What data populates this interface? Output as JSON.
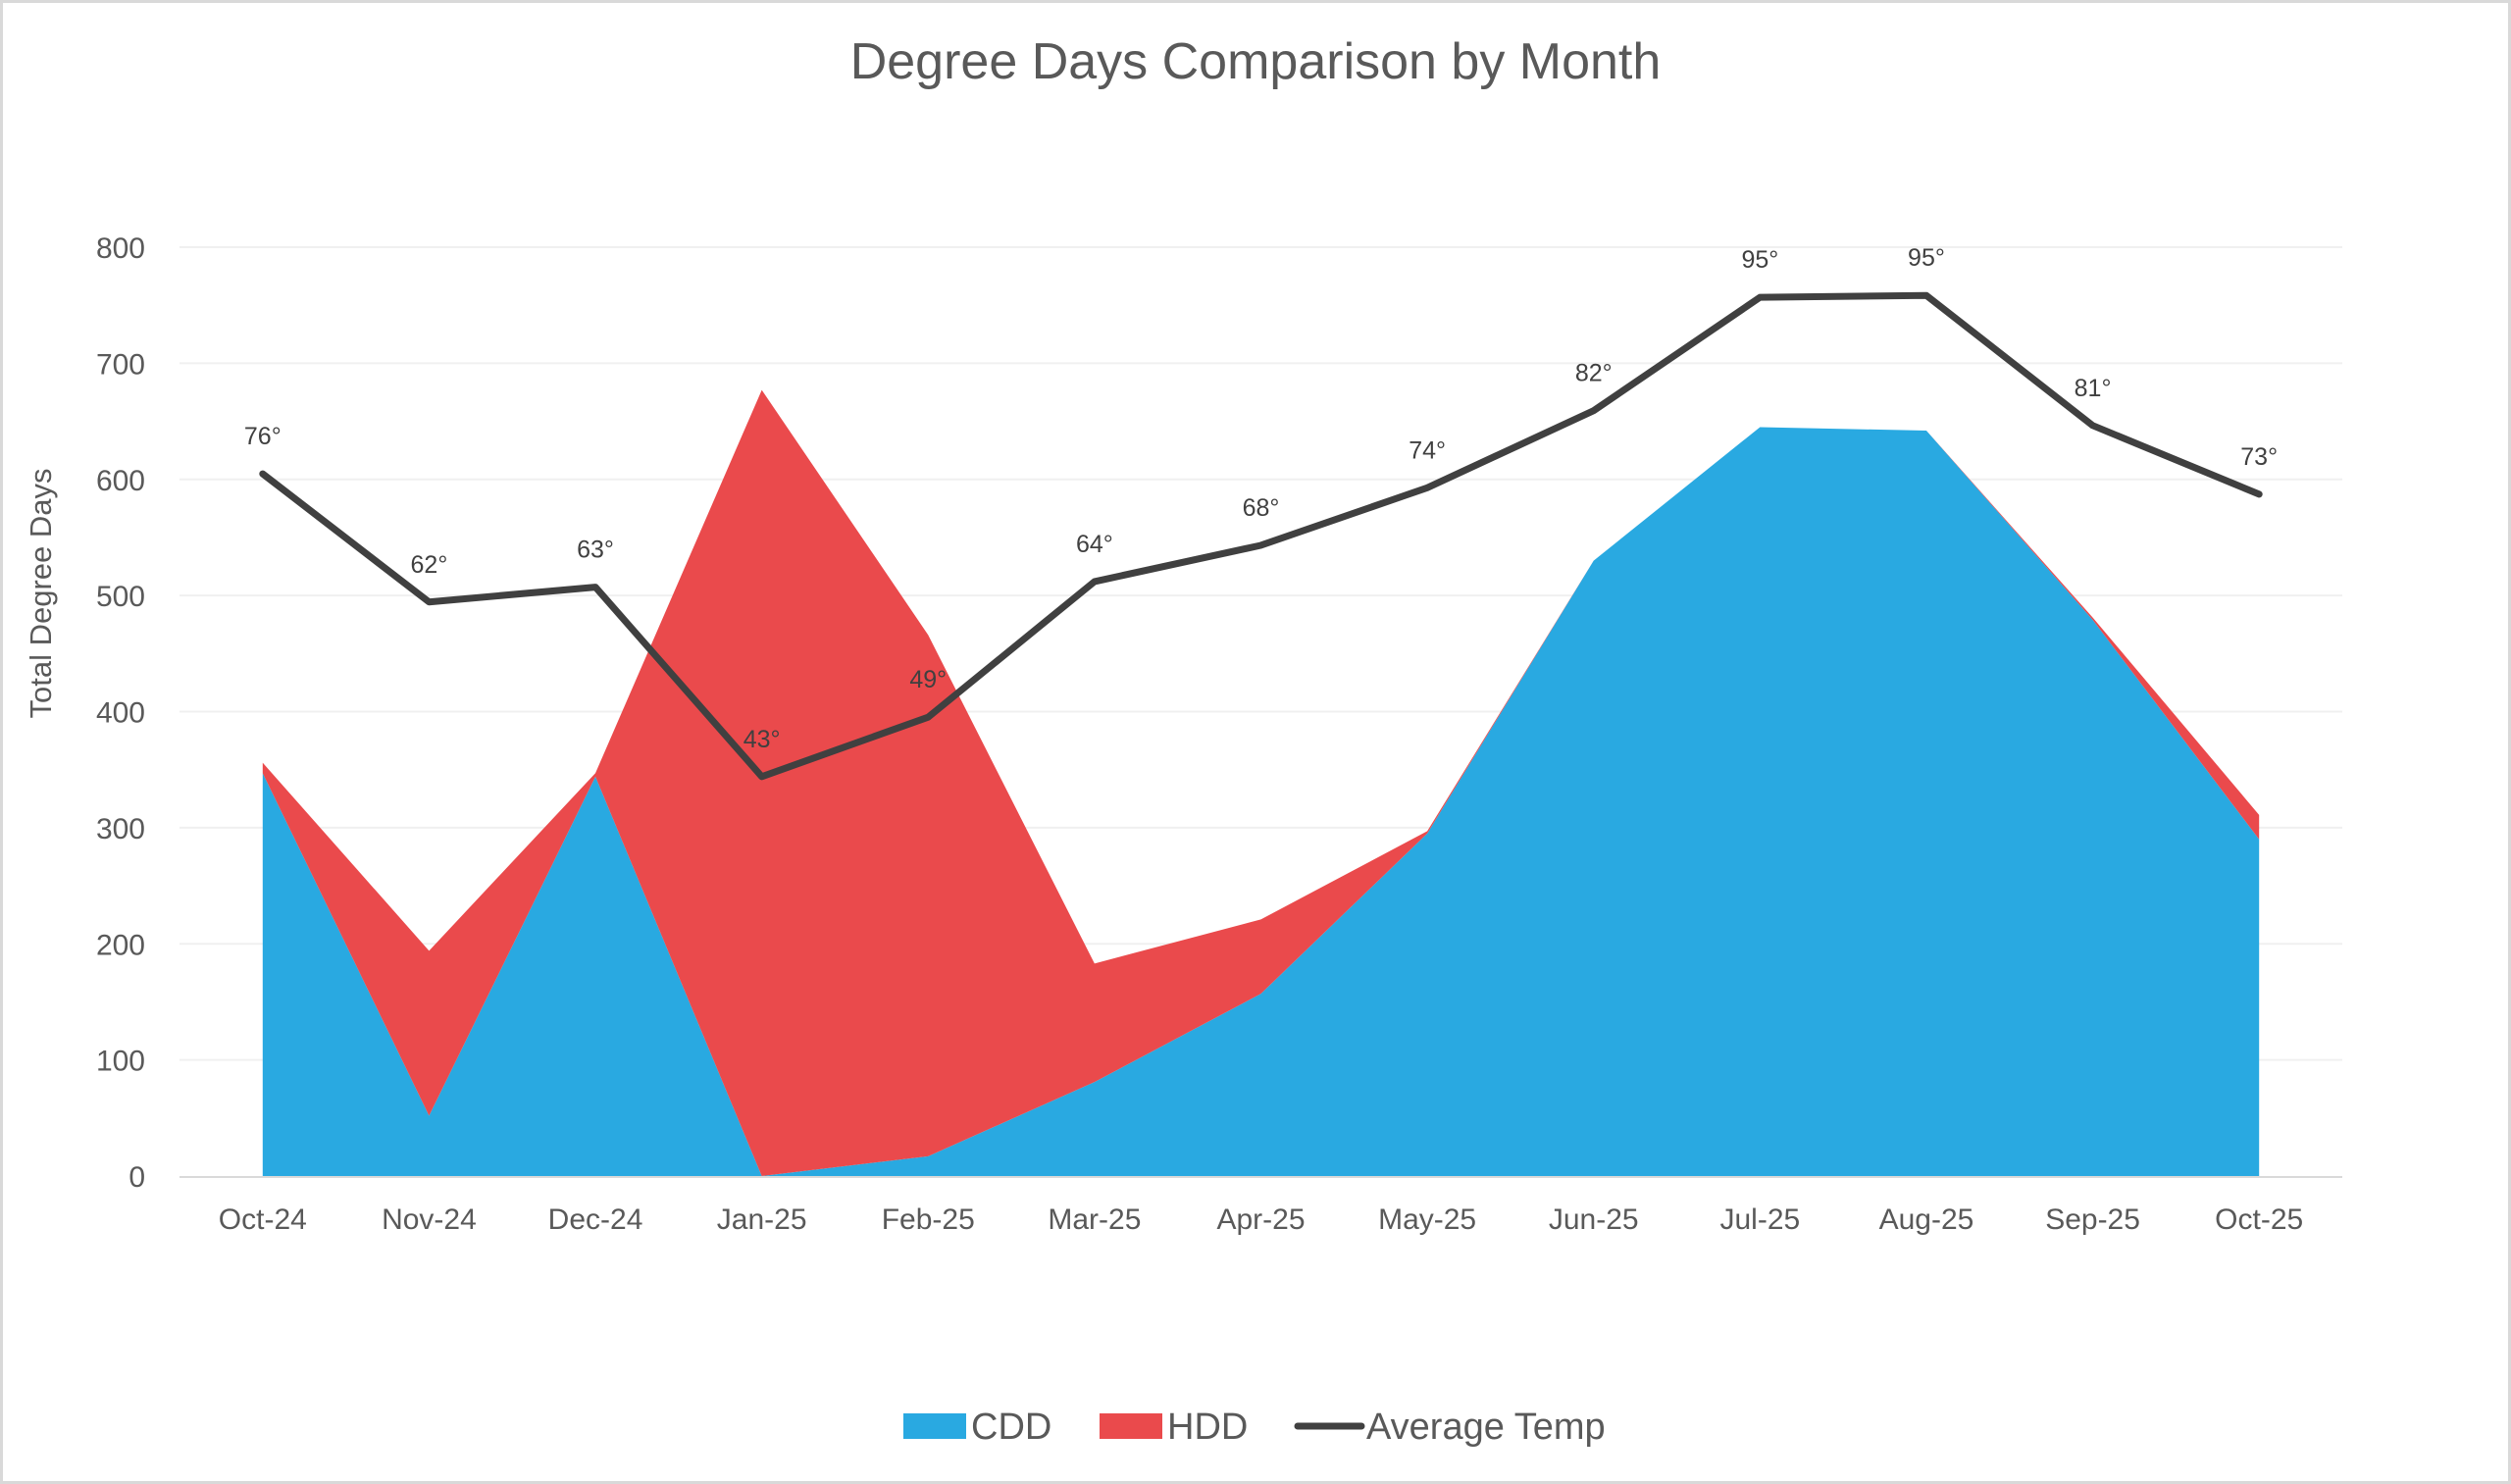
{
  "chart_data": {
    "type": "area",
    "title": "Degree Days Comparison by Month",
    "xlabel": "",
    "ylabel": "Total Degree Days",
    "ylim": [
      0,
      800
    ],
    "yticks": [
      0,
      100,
      200,
      300,
      400,
      500,
      600,
      700,
      800
    ],
    "ytick_labels": [
      "0",
      "100",
      "200",
      "300",
      "400",
      "500",
      "600",
      "700",
      "800"
    ],
    "grid": true,
    "legend_position": "bottom",
    "categories": [
      "Oct-24",
      "Nov-24",
      "Dec-24",
      "Jan-25",
      "Feb-25",
      "Mar-25",
      "Apr-25",
      "May-25",
      "Jun-25",
      "Jul-25",
      "Aug-25",
      "Sep-25",
      "Oct-25"
    ],
    "series": [
      {
        "name": "CDD",
        "type": "stacked-area",
        "color": "#29a9e1",
        "values": [
          347,
          52,
          344,
          0,
          17,
          81,
          157,
          295,
          530,
          645,
          642,
          479,
          290
        ]
      },
      {
        "name": "HDD",
        "type": "stacked-area",
        "color": "#ea4a4c",
        "values": [
          9,
          142,
          3,
          677,
          449,
          102,
          64,
          2,
          0,
          0,
          0,
          2,
          21
        ]
      },
      {
        "name": "Average Temp",
        "type": "line",
        "color": "#404040",
        "plot_scale": 8,
        "values": [
          75.6,
          61.8,
          63.4,
          43.0,
          49.4,
          64.0,
          67.9,
          74.1,
          82.4,
          94.6,
          94.8,
          80.8,
          73.4
        ],
        "data_labels": [
          "76°",
          "62°",
          "63°",
          "43°",
          "49°",
          "64°",
          "68°",
          "74°",
          "82°",
          "95°",
          "95°",
          "81°",
          "73°"
        ]
      }
    ]
  }
}
